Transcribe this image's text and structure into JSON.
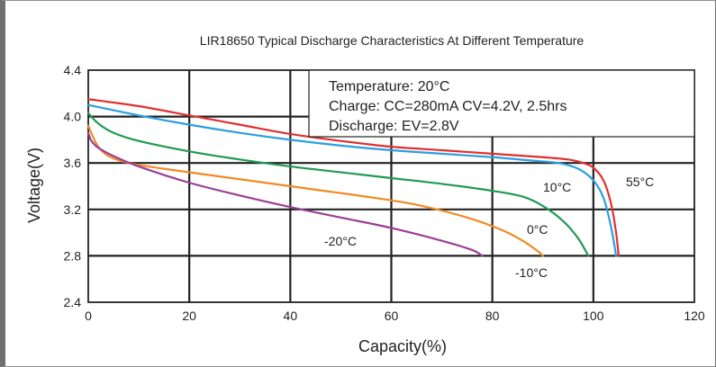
{
  "chart_data": {
    "type": "line",
    "title": "LIR18650 Typical Discharge Characteristics At Different Temperature",
    "xlabel": "Capacity(%)",
    "ylabel": "Voltage(V)",
    "xlim": [
      0,
      120
    ],
    "ylim": [
      2.4,
      4.4
    ],
    "xticks": [
      "0",
      "20",
      "40",
      "60",
      "80",
      "100",
      "120"
    ],
    "yticks": [
      "2.4",
      "2.8",
      "3.2",
      "3.6",
      "4.0",
      "4.4"
    ],
    "grid": true,
    "info_box": [
      "Temperature: 20°C",
      "Charge: CC=280mA CV=4.2V, 2.5hrs",
      "Discharge: EV=2.8V"
    ],
    "series": [
      {
        "name": "55°C",
        "color": "#e03030",
        "x": [
          0,
          10,
          20,
          30,
          40,
          50,
          60,
          70,
          80,
          90,
          95,
          98,
          100,
          102,
          103.5,
          104.5,
          105
        ],
        "y": [
          4.15,
          4.09,
          4.01,
          3.93,
          3.85,
          3.79,
          3.74,
          3.71,
          3.68,
          3.65,
          3.63,
          3.6,
          3.56,
          3.45,
          3.25,
          3.0,
          2.8
        ]
      },
      {
        "name": "10°C",
        "color": "#2b9fe0",
        "x": [
          0,
          10,
          20,
          30,
          40,
          50,
          60,
          70,
          80,
          88,
          93,
          97,
          100,
          102,
          103.5,
          104.5
        ],
        "y": [
          4.1,
          4.01,
          3.93,
          3.86,
          3.8,
          3.75,
          3.71,
          3.68,
          3.65,
          3.62,
          3.6,
          3.55,
          3.45,
          3.3,
          3.05,
          2.8
        ]
      },
      {
        "name": "0°C",
        "color": "#1f9a52",
        "x": [
          0,
          2,
          5,
          10,
          20,
          30,
          40,
          50,
          60,
          70,
          80,
          86,
          90,
          94,
          97,
          99
        ],
        "y": [
          4.03,
          3.94,
          3.86,
          3.79,
          3.7,
          3.63,
          3.57,
          3.52,
          3.47,
          3.42,
          3.36,
          3.31,
          3.23,
          3.1,
          2.95,
          2.8
        ]
      },
      {
        "name": "-10°C",
        "color": "#f08b23",
        "x": [
          0,
          1,
          2,
          4,
          8,
          15,
          25,
          35,
          45,
          55,
          65,
          75,
          82,
          86,
          89,
          90
        ],
        "y": [
          3.92,
          3.82,
          3.74,
          3.66,
          3.6,
          3.55,
          3.49,
          3.43,
          3.37,
          3.31,
          3.24,
          3.13,
          3.02,
          2.93,
          2.84,
          2.8
        ]
      },
      {
        "name": "-20°C",
        "color": "#9a3f95",
        "x": [
          0,
          0.5,
          1,
          2,
          5,
          10,
          20,
          30,
          40,
          50,
          60,
          70,
          76,
          78
        ],
        "y": [
          3.86,
          3.8,
          3.77,
          3.73,
          3.66,
          3.57,
          3.43,
          3.32,
          3.22,
          3.13,
          3.04,
          2.93,
          2.85,
          2.8
        ]
      }
    ]
  }
}
